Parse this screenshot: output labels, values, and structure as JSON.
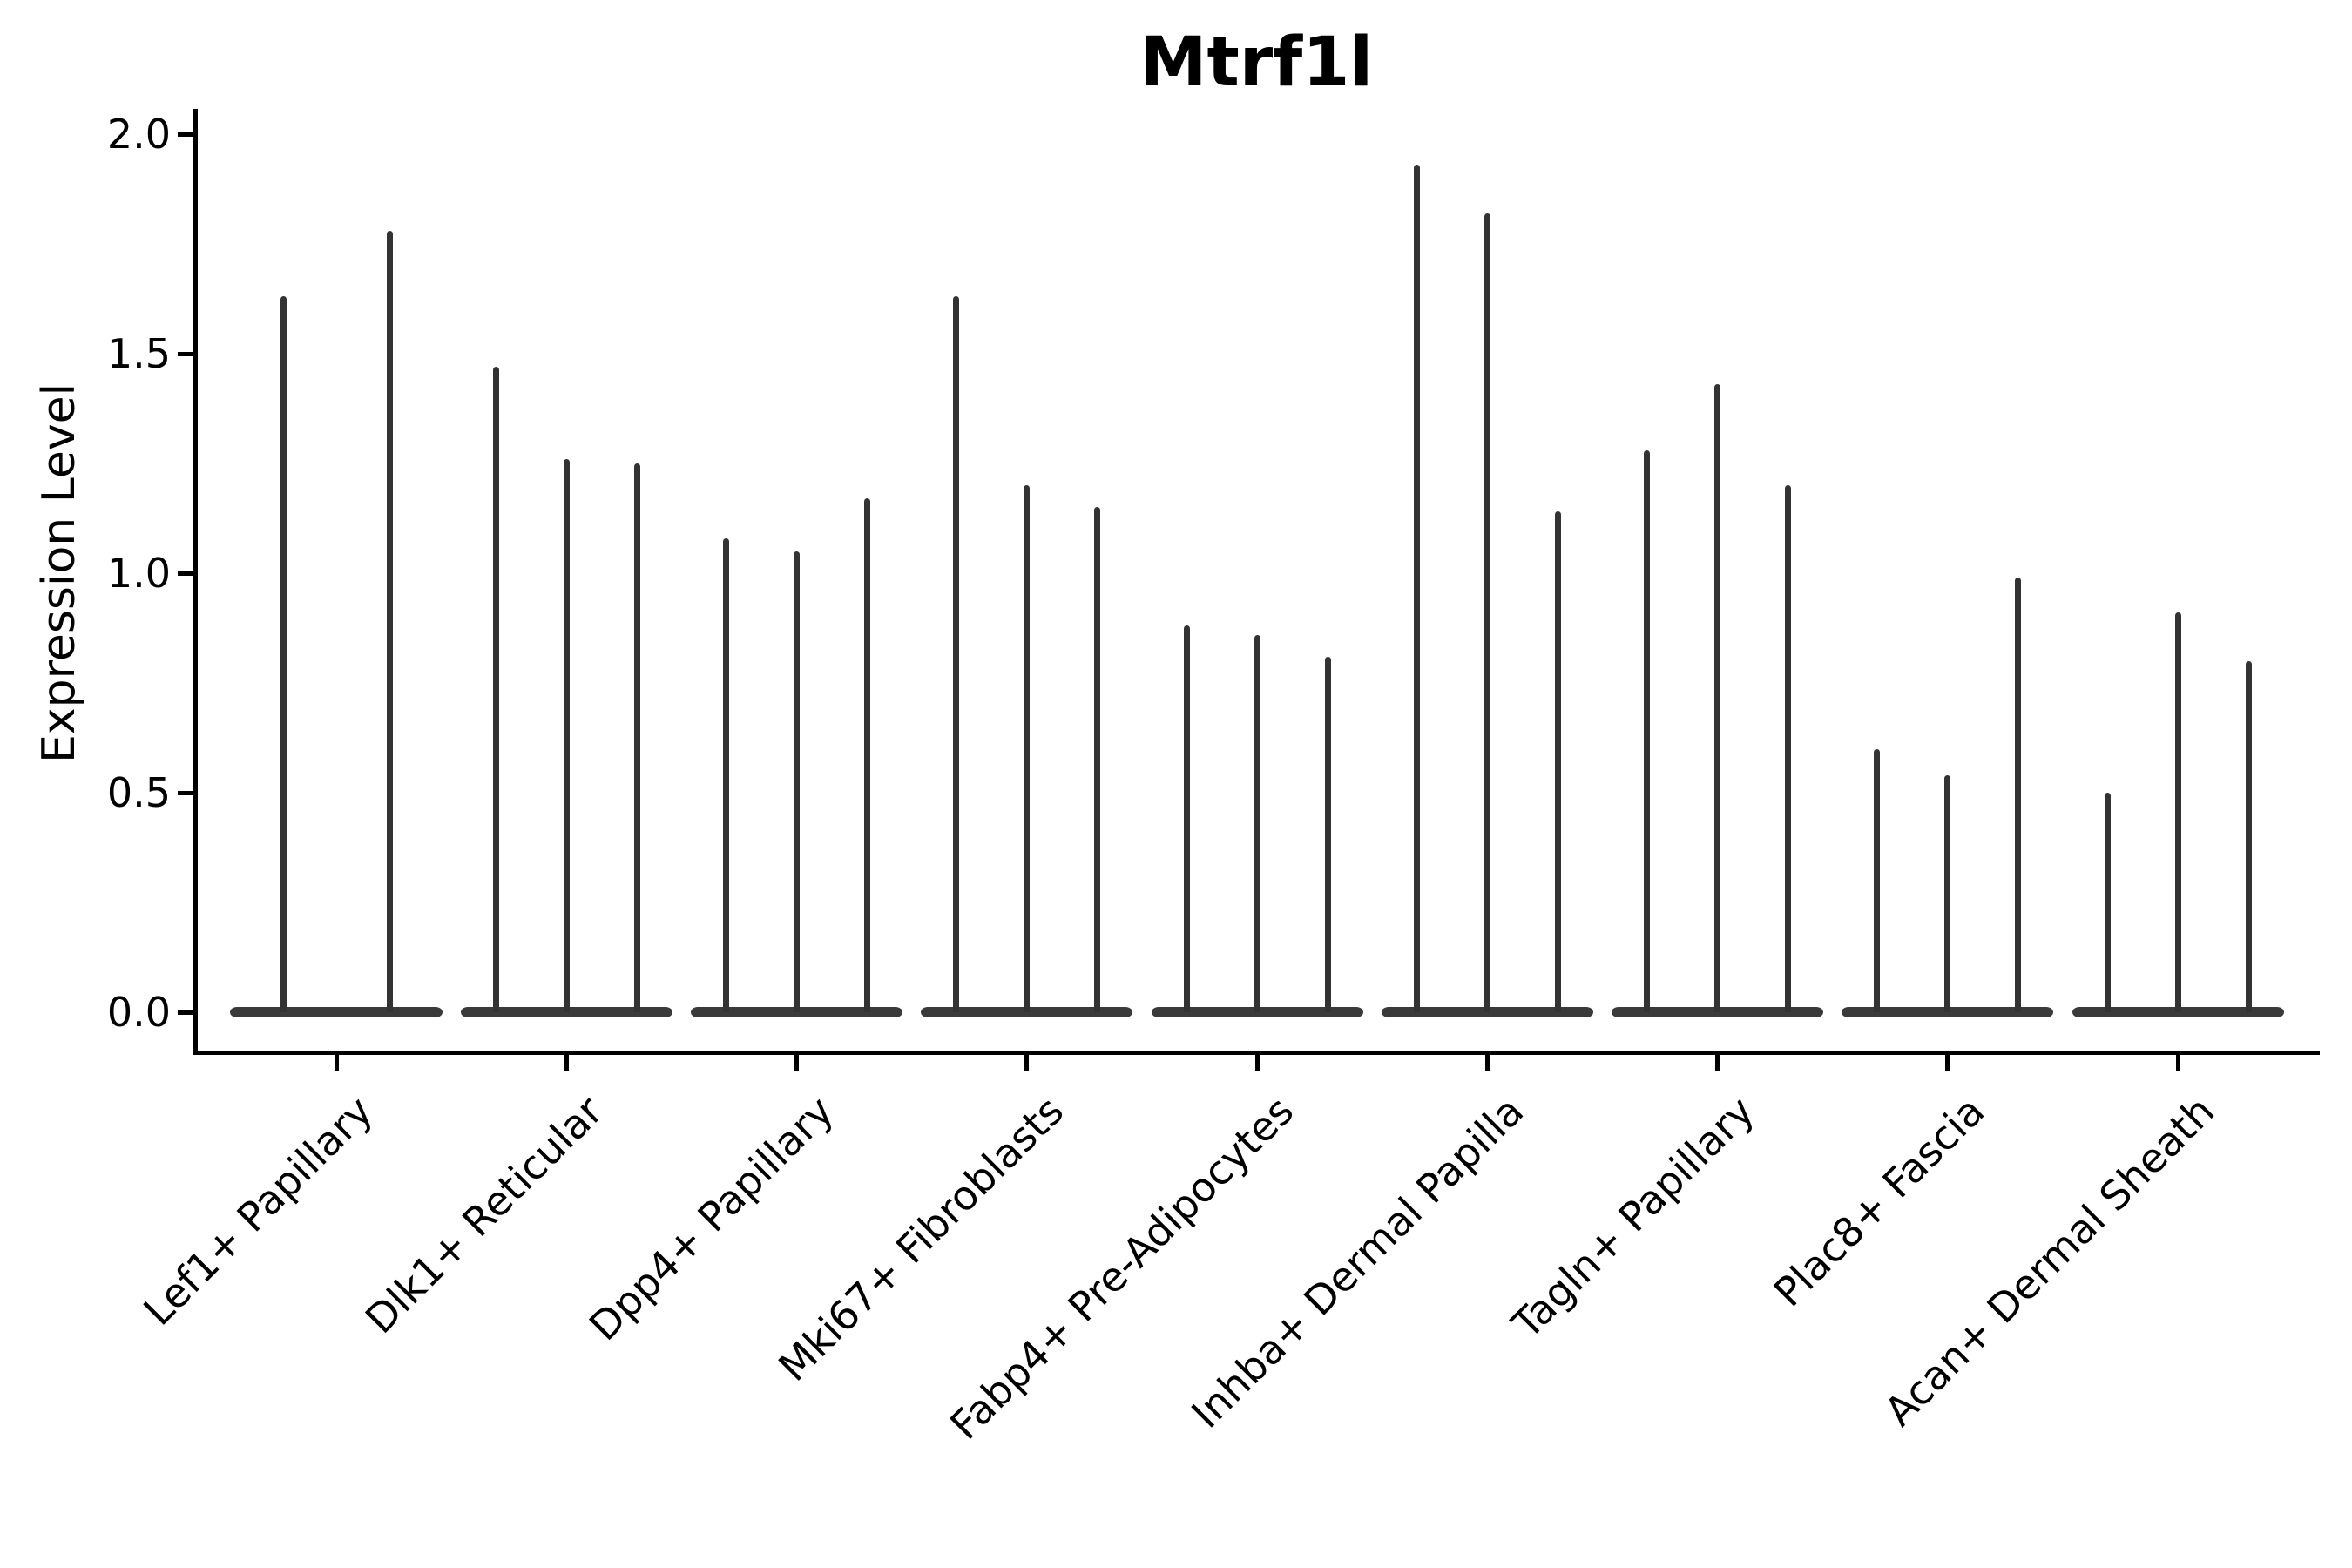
{
  "chart_data": {
    "type": "violin",
    "title": "Mtrf1l",
    "ylabel": "Expression Level",
    "xlabel": "",
    "ylim": [
      -0.09,
      2.06
    ],
    "yticks": [
      0.0,
      0.5,
      1.0,
      1.5,
      2.0
    ],
    "ytick_labels": [
      "0.0",
      "0.5",
      "1.0",
      "1.5",
      "2.0"
    ],
    "grid": false,
    "legend": null,
    "categories": [
      "Lef1+ Papillary",
      "Dlk1+ Reticular",
      "Dpp4+ Papillary",
      "Mki67+ Fibroblasts",
      "Fabp4+ Pre-Adipocytes",
      "Inhba+ Dermal Papilla",
      "Tagln+ Papillary",
      "Plac8+ Fascia",
      "Acan+ Dermal Sheath"
    ],
    "groups": [
      {
        "category": "Lef1+ Papillary",
        "violin_maxima": [
          1.63,
          1.78
        ]
      },
      {
        "category": "Dlk1+ Reticular",
        "violin_maxima": [
          1.47,
          1.26,
          1.25
        ]
      },
      {
        "category": "Dpp4+ Papillary",
        "violin_maxima": [
          1.08,
          1.05,
          1.17
        ]
      },
      {
        "category": "Mki67+ Fibroblasts",
        "violin_maxima": [
          1.63,
          1.2,
          1.15
        ]
      },
      {
        "category": "Fabp4+ Pre-Adipocytes",
        "violin_maxima": [
          0.88,
          0.86,
          0.81
        ]
      },
      {
        "category": "Inhba+ Dermal Papilla",
        "violin_maxima": [
          1.93,
          1.82,
          1.14
        ]
      },
      {
        "category": "Tagln+ Papillary",
        "violin_maxima": [
          1.28,
          1.43,
          1.2
        ]
      },
      {
        "category": "Plac8+ Fascia",
        "violin_maxima": [
          0.6,
          0.54,
          0.99
        ]
      },
      {
        "category": "Acan+ Dermal Sheath",
        "violin_maxima": [
          0.5,
          0.91,
          0.8
        ]
      }
    ],
    "violin_color": "#333333",
    "violin_base_color": "#3a3a3a",
    "axis_color": "#000000",
    "background_color": "#ffffff"
  }
}
